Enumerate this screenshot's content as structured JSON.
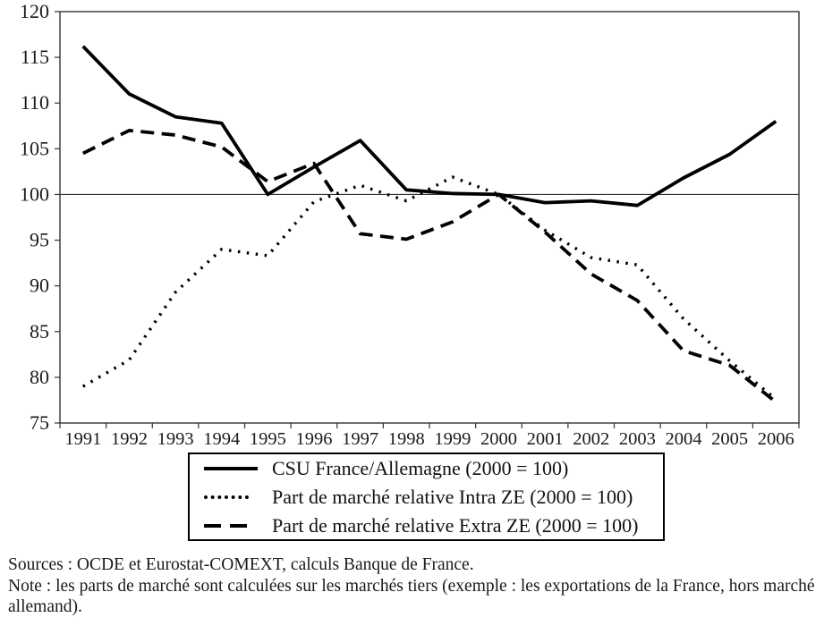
{
  "chart_data": {
    "type": "line",
    "x_labels": [
      "1991",
      "1992",
      "1993",
      "1994",
      "1995",
      "1996",
      "1997",
      "1998",
      "1999",
      "2000",
      "2001",
      "2002",
      "2003",
      "2004",
      "2005",
      "2006"
    ],
    "series": [
      {
        "name": "CSU France/Allemagne (2000 = 100)",
        "style": "solid",
        "values": [
          116.2,
          111.0,
          108.5,
          107.8,
          100.0,
          103.0,
          105.9,
          100.5,
          100.1,
          100.0,
          99.1,
          99.3,
          98.8,
          101.8,
          104.4,
          108.0
        ]
      },
      {
        "name": "Part de marché relative Intra ZE (2000 = 100)",
        "style": "dotted",
        "values": [
          79.0,
          81.9,
          89.3,
          94.0,
          93.3,
          99.2,
          101.0,
          99.3,
          101.9,
          100.0,
          96.1,
          93.1,
          92.3,
          86.4,
          81.8,
          77.6
        ]
      },
      {
        "name": "Part de marché relative Extra ZE (2000 = 100)",
        "style": "dashed",
        "values": [
          104.5,
          107.0,
          106.5,
          105.2,
          101.4,
          103.4,
          95.7,
          95.1,
          97.0,
          100.0,
          95.9,
          91.3,
          88.4,
          82.9,
          81.3,
          77.3
        ]
      }
    ],
    "ylim": [
      75,
      120
    ],
    "yticks": [
      120,
      115,
      110,
      105,
      100,
      95,
      90,
      85,
      80,
      75
    ],
    "reference_line": 100,
    "grid": false,
    "legend_position": "below",
    "line_color": "#000000",
    "frame_color": "#333333"
  },
  "footer": {
    "sources": "Sources : OCDE et Eurostat-COMEXT, calculs Banque de France.",
    "note": "Note : les parts de marché sont calculées sur les marchés tiers (exemple : les exportations de la France, hors marché allemand)."
  }
}
